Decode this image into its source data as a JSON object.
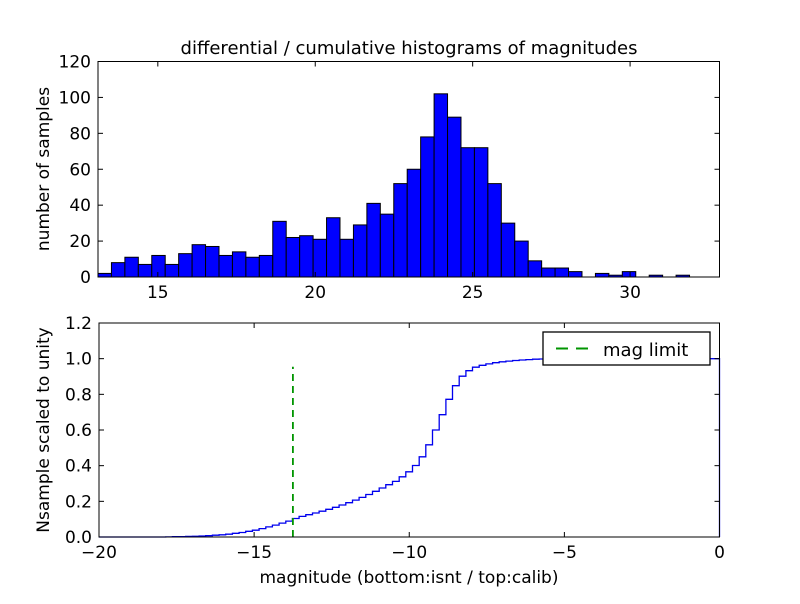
{
  "figure": {
    "background": "#ffffff"
  },
  "top_plot": {
    "title": "differential / cumulative histograms of magnitudes",
    "ylabel": "number of samples"
  },
  "bottom_plot": {
    "ylabel": "Nsample scaled to unity",
    "xlabel": "magnitude (bottom:isnt / top:calib)",
    "legend": {
      "label": "mag limit"
    }
  },
  "chart_data": [
    {
      "type": "bar",
      "subplot": "top",
      "title": "differential / cumulative histograms of magnitudes",
      "ylabel": "number of samples",
      "bin_start": 13.1,
      "bin_width": 0.427,
      "values": [
        2,
        8,
        11,
        7,
        12,
        7,
        13,
        18,
        17,
        12,
        14,
        11,
        12,
        31,
        22,
        23,
        21,
        33,
        21,
        29,
        41,
        35,
        52,
        60,
        78,
        102,
        89,
        72,
        72,
        52,
        30,
        20,
        9,
        5,
        5,
        3,
        0,
        2,
        1,
        3,
        0,
        1,
        0,
        1
      ],
      "xlim": [
        13.1,
        32.84
      ],
      "ylim": [
        0,
        120
      ],
      "xticks": [
        15,
        20,
        25,
        30
      ],
      "yticks": [
        0,
        20,
        40,
        60,
        80,
        100,
        120
      ],
      "bar_color": "#0000ff",
      "bar_edge_color": "#000000",
      "grid": false
    },
    {
      "type": "line",
      "subplot": "bottom",
      "style": "step-cumulative",
      "ylabel": "Nsample scaled to unity",
      "xlabel": "magnitude (bottom:isnt / top:calib)",
      "xlim": [
        -20,
        0
      ],
      "ylim": [
        0,
        1.2
      ],
      "xticks": [
        -20,
        -15,
        -10,
        -5,
        0
      ],
      "yticks": [
        0.0,
        0.2,
        0.4,
        0.6,
        0.8,
        1.0,
        1.2
      ],
      "step_width": 0.215,
      "line_color": "#0000ee",
      "control_points": [
        [
          -18,
          0
        ],
        [
          -17.5,
          0.002
        ],
        [
          -17,
          0.004
        ],
        [
          -16.5,
          0.008
        ],
        [
          -16,
          0.014
        ],
        [
          -15.5,
          0.025
        ],
        [
          -15,
          0.04
        ],
        [
          -14.5,
          0.062
        ],
        [
          -14,
          0.088
        ],
        [
          -13.75,
          0.105
        ],
        [
          -13.5,
          0.118
        ],
        [
          -13,
          0.14
        ],
        [
          -12.5,
          0.165
        ],
        [
          -12,
          0.195
        ],
        [
          -11.5,
          0.23
        ],
        [
          -11,
          0.272
        ],
        [
          -10.5,
          0.315
        ],
        [
          -10,
          0.38
        ],
        [
          -9.8,
          0.42
        ],
        [
          -9.6,
          0.47
        ],
        [
          -9.4,
          0.54
        ],
        [
          -9.2,
          0.62
        ],
        [
          -9,
          0.7
        ],
        [
          -8.8,
          0.78
        ],
        [
          -8.6,
          0.85
        ],
        [
          -8.4,
          0.9
        ],
        [
          -8.2,
          0.93
        ],
        [
          -8,
          0.95
        ],
        [
          -7.7,
          0.965
        ],
        [
          -7.4,
          0.975
        ],
        [
          -7,
          0.985
        ],
        [
          -6.5,
          0.992
        ],
        [
          -6,
          0.997
        ],
        [
          -5.5,
          1.0
        ],
        [
          0,
          1.0
        ]
      ],
      "closes_to_zero_at_right_edge": true,
      "annotations": [
        {
          "type": "vline",
          "x": -13.75,
          "ymin": 0,
          "ymax": 0.955,
          "style": "dashed",
          "color": "#009500",
          "label": "mag limit"
        }
      ],
      "legend": {
        "position": "upper right",
        "entries": [
          "mag limit"
        ]
      },
      "grid": false
    }
  ]
}
